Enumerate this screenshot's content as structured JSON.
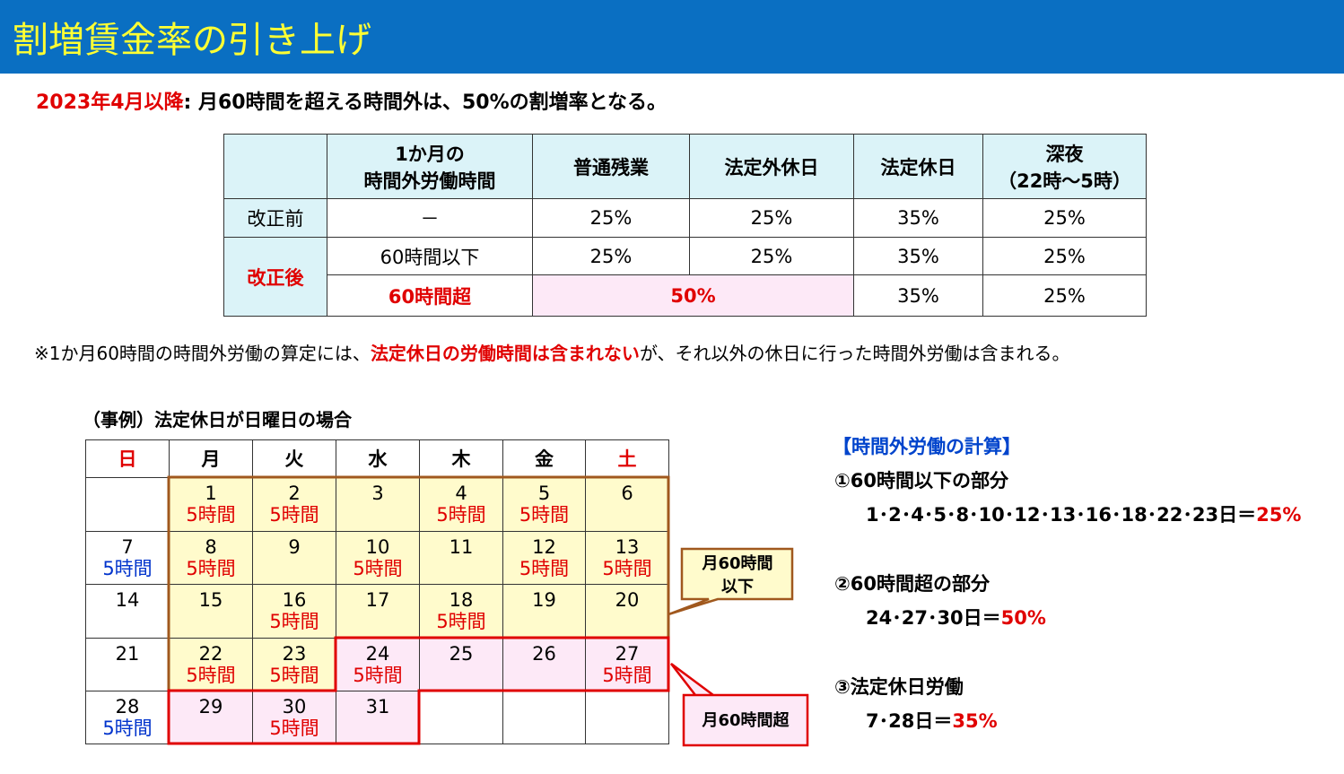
{
  "header": {
    "title": "割増賃金率の引き上げ"
  },
  "summary": {
    "lead": "2023年4月以降",
    "text": ": 月60時間を超える時間外は、50%の割増率となる。"
  },
  "table": {
    "columns": [
      [
        "1か月の",
        "時間外労働時間"
      ],
      [
        "普通残業"
      ],
      [
        "法定外休日"
      ],
      [
        "法定休日"
      ],
      [
        "深夜",
        "（22時～5時）"
      ]
    ],
    "before": {
      "label": "改正前",
      "cells": [
        "－",
        "25%",
        "25%",
        "35%",
        "25%"
      ]
    },
    "after": {
      "label": "改正後",
      "rows": [
        [
          "60時間以下",
          "25%",
          "25%",
          "35%",
          "25%"
        ],
        [
          "60時間超",
          "50%",
          "35%",
          "25%"
        ]
      ]
    }
  },
  "note": [
    "※1か月60時間の時間外労働の算定には、",
    "法定休日の労働時間は含まれない",
    "が、それ以外の休日に行った時間外労働は含まれる。"
  ],
  "calendar": {
    "caption": "（事例）法定休日が日曜日の場合",
    "weekdays": [
      {
        "label": "日",
        "color": "#e00000"
      },
      {
        "label": "月",
        "color": "#000000"
      },
      {
        "label": "火",
        "color": "#000000"
      },
      {
        "label": "水",
        "color": "#000000"
      },
      {
        "label": "木",
        "color": "#000000"
      },
      {
        "label": "金",
        "color": "#000000"
      },
      {
        "label": "土",
        "color": "#e00000"
      }
    ],
    "weeks": [
      [
        null,
        {
          "day": 1,
          "hours": "5時間",
          "fill": "#fffbcc"
        },
        {
          "day": 2,
          "hours": "5時間",
          "fill": "#fffbcc"
        },
        {
          "day": 3,
          "fill": "#fffbcc"
        },
        {
          "day": 4,
          "hours": "5時間",
          "fill": "#fffbcc"
        },
        {
          "day": 5,
          "hours": "5時間",
          "fill": "#fffbcc"
        },
        {
          "day": 6,
          "fill": "#fffbcc"
        }
      ],
      [
        {
          "day": 7,
          "hours": "5時間",
          "fill": "#ffffff"
        },
        {
          "day": 8,
          "hours": "5時間",
          "fill": "#fffbcc"
        },
        {
          "day": 9,
          "fill": "#fffbcc"
        },
        {
          "day": 10,
          "hours": "5時間",
          "fill": "#fffbcc"
        },
        {
          "day": 11,
          "fill": "#fffbcc"
        },
        {
          "day": 12,
          "hours": "5時間",
          "fill": "#fffbcc"
        },
        {
          "day": 13,
          "hours": "5時間",
          "fill": "#fffbcc"
        }
      ],
      [
        {
          "day": 14,
          "fill": "#ffffff"
        },
        {
          "day": 15,
          "fill": "#fffbcc"
        },
        {
          "day": 16,
          "hours": "5時間",
          "fill": "#fffbcc"
        },
        {
          "day": 17,
          "fill": "#fffbcc"
        },
        {
          "day": 18,
          "hours": "5時間",
          "fill": "#fffbcc"
        },
        {
          "day": 19,
          "fill": "#fffbcc"
        },
        {
          "day": 20,
          "fill": "#fffbcc"
        }
      ],
      [
        {
          "day": 21,
          "fill": "#ffffff"
        },
        {
          "day": 22,
          "hours": "5時間",
          "fill": "#fffbcc"
        },
        {
          "day": 23,
          "hours": "5時間",
          "fill": "#fffbcc"
        },
        {
          "day": 24,
          "hours": "5時間",
          "fill": "#fde9f7"
        },
        {
          "day": 25,
          "fill": "#fde9f7"
        },
        {
          "day": 26,
          "fill": "#fde9f7"
        },
        {
          "day": 27,
          "hours": "5時間",
          "fill": "#fde9f7"
        }
      ],
      [
        {
          "day": 28,
          "hours": "5時間",
          "fill": "#ffffff"
        },
        {
          "day": 29,
          "fill": "#fde9f7"
        },
        {
          "day": 30,
          "hours": "5時間",
          "fill": "#fde9f7"
        },
        {
          "day": 31,
          "fill": "#fde9f7"
        },
        null,
        null,
        null
      ]
    ]
  },
  "callouts": {
    "under": [
      "月60時間",
      "以下"
    ],
    "over": "月60時間超"
  },
  "calc": {
    "heading": "【時間外労働の計算】",
    "items": [
      {
        "label": "①60時間以下の部分",
        "days": "1･2･4･5･8･10･12･13･16･18･22･23日＝",
        "rate": "25%"
      },
      {
        "label": "②60時間超の部分",
        "days": "24･27･30日＝",
        "rate": "50%"
      },
      {
        "label": "③法定休日労働",
        "days": "7･28日＝",
        "rate": "35%"
      }
    ]
  }
}
